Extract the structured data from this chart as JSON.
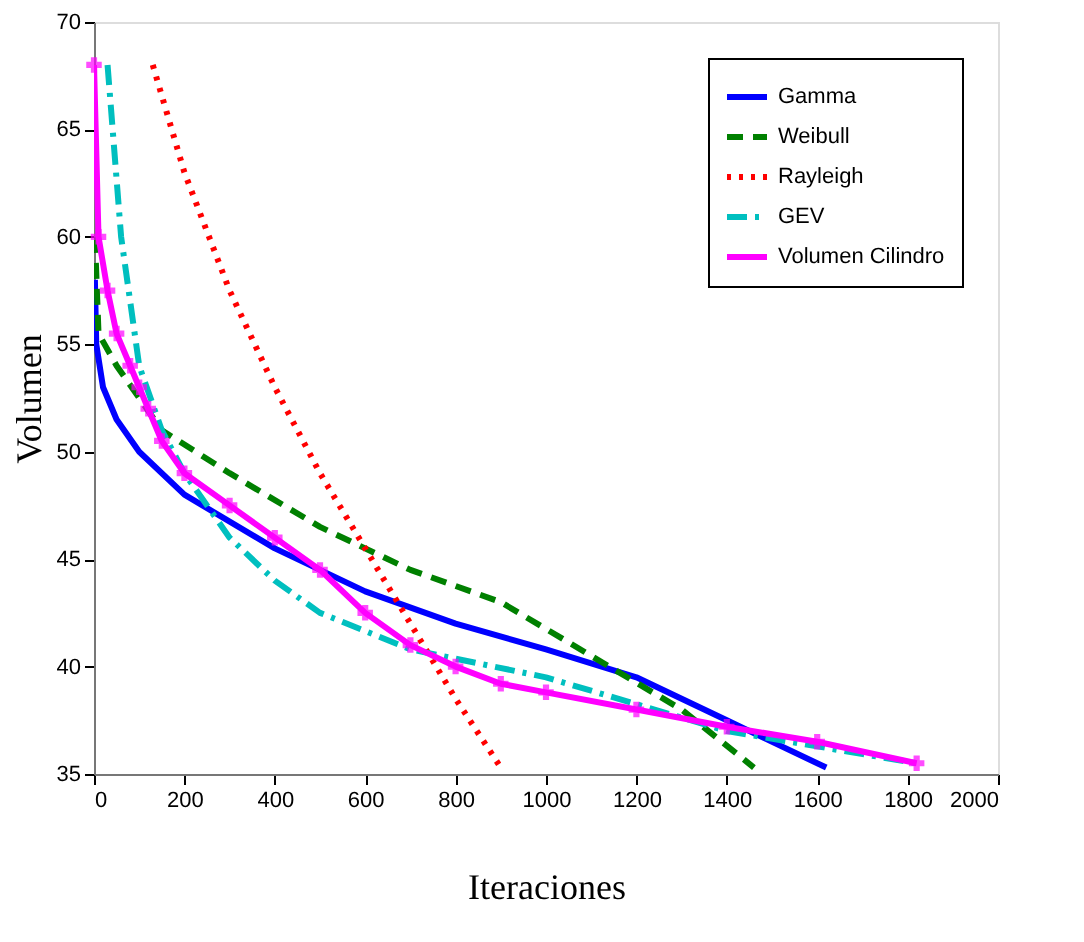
{
  "chart_data": {
    "type": "line",
    "xlabel": "Iteraciones",
    "ylabel": "Volumen",
    "xlim": [
      0,
      2000
    ],
    "ylim": [
      35,
      70
    ],
    "xticks": [
      0,
      200,
      400,
      600,
      800,
      1000,
      1200,
      1400,
      1600,
      1800,
      2000
    ],
    "yticks": [
      35,
      40,
      45,
      50,
      55,
      60,
      65,
      70
    ],
    "grid": false,
    "legend": "top right",
    "series": [
      {
        "name": "Gamma",
        "color": "#0000ff",
        "line_style": "solid",
        "marker": "none",
        "x": [
          2,
          5,
          20,
          50,
          100,
          200,
          400,
          600,
          800,
          1000,
          1200,
          1400,
          1620
        ],
        "values": [
          58,
          55,
          53,
          51.5,
          50,
          48,
          45.5,
          43.5,
          42,
          40.8,
          39.5,
          37.5,
          35.3
        ]
      },
      {
        "name": "Weibull",
        "color": "#008000",
        "line_style": "dashed",
        "marker": "none",
        "x": [
          2,
          10,
          50,
          150,
          300,
          500,
          700,
          900,
          1100,
          1300,
          1460
        ],
        "values": [
          60,
          55.5,
          54,
          51,
          49,
          46.5,
          44.5,
          43,
          40.5,
          38,
          35.3
        ]
      },
      {
        "name": "Rayleigh",
        "color": "#ff0000",
        "line_style": "dotted",
        "marker": "none",
        "x": [
          130,
          200,
          300,
          400,
          500,
          600,
          700,
          800,
          900
        ],
        "values": [
          68,
          63,
          57.5,
          53,
          49,
          45.5,
          42,
          38.5,
          35.3
        ]
      },
      {
        "name": "GEV",
        "color": "#00bfbf",
        "line_style": "dashdot",
        "marker": "none",
        "x": [
          30,
          60,
          100,
          150,
          200,
          300,
          400,
          500,
          700,
          1000,
          1400,
          1820
        ],
        "values": [
          68,
          60,
          54,
          51,
          49,
          46,
          44,
          42.5,
          40.8,
          39.5,
          37,
          35.5
        ]
      },
      {
        "name": "Volumen Cilindro",
        "color": "#ff00ff",
        "line_style": "solid",
        "marker": "cross",
        "x": [
          0,
          10,
          30,
          50,
          80,
          100,
          120,
          150,
          200,
          300,
          400,
          500,
          600,
          700,
          800,
          900,
          1000,
          1200,
          1400,
          1600,
          1820
        ],
        "values": [
          68,
          60,
          57.5,
          55.5,
          54,
          53,
          52,
          50.5,
          49,
          47.5,
          46,
          44.5,
          42.5,
          41,
          40,
          39.2,
          38.8,
          38,
          37.2,
          36.5,
          35.5
        ]
      }
    ]
  }
}
